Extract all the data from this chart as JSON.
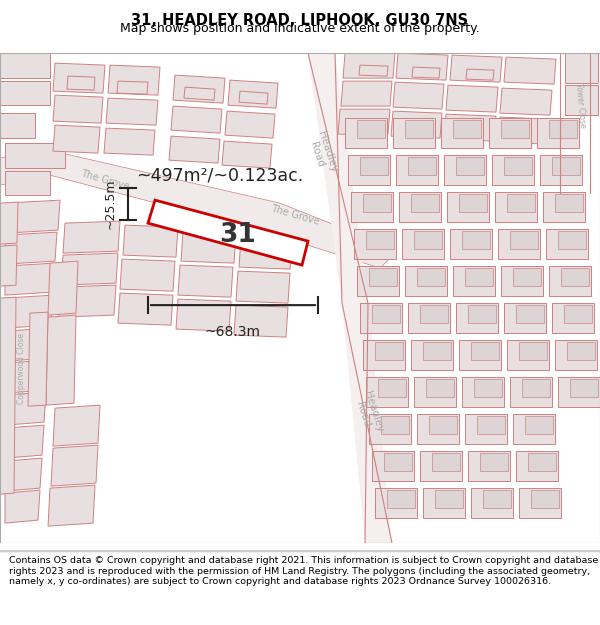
{
  "title": "31, HEADLEY ROAD, LIPHOOK, GU30 7NS",
  "subtitle": "Map shows position and indicative extent of the property.",
  "footer": "Contains OS data © Crown copyright and database right 2021. This information is subject to Crown copyright and database rights 2023 and is reproduced with the permission of HM Land Registry. The polygons (including the associated geometry, namely x, y co-ordinates) are subject to Crown copyright and database rights 2023 Ordnance Survey 100026316.",
  "map_bg": "#f2eded",
  "building_fill": "#e8e0e0",
  "building_edge": "#d08080",
  "road_fill": "#ffffff",
  "road_edge": "#d08080",
  "highlight_fill": "#ffffff",
  "highlight_edge": "#cc0000",
  "highlight_lw": 2.0,
  "area_text": "~497m²/~0.123ac.",
  "width_text": "~68.3m",
  "height_text": "~25.5m",
  "number_text": "31",
  "title_fontsize": 10.5,
  "subtitle_fontsize": 9,
  "footer_fontsize": 6.8,
  "label_color": "#aaaaaa",
  "dim_color": "#222222"
}
